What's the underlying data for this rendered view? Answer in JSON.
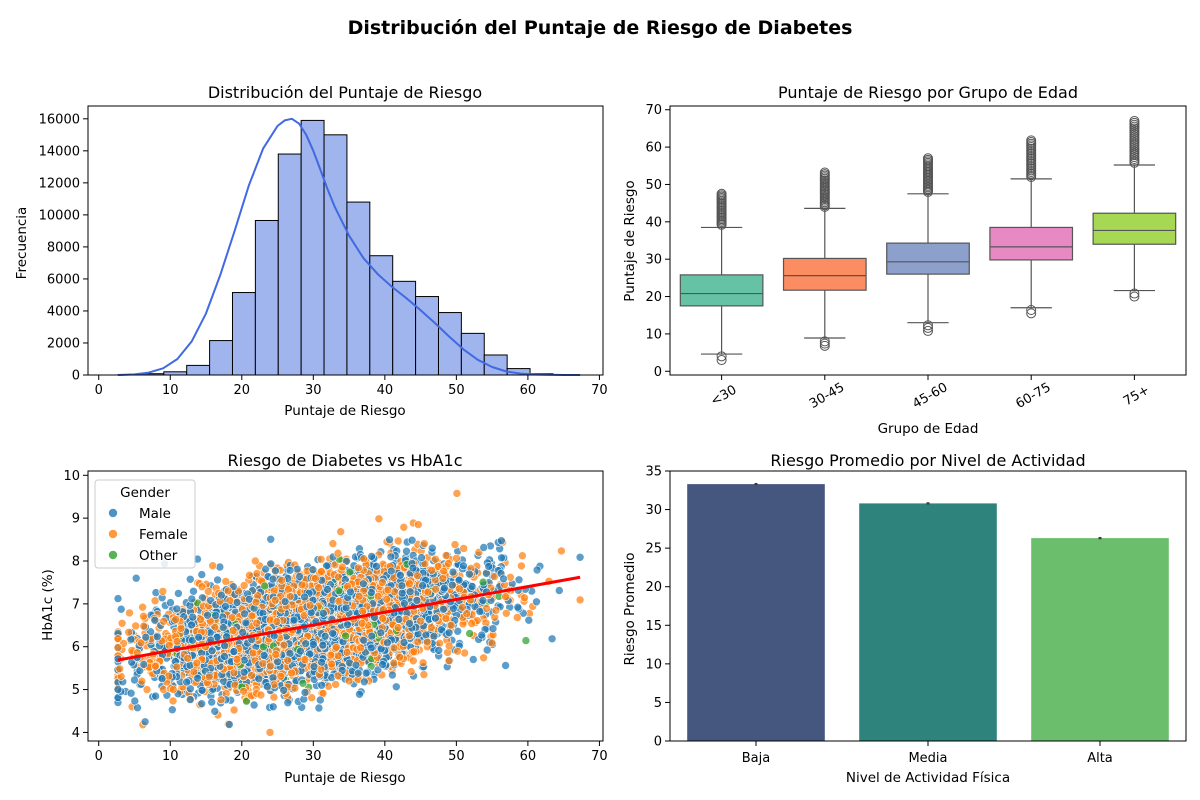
{
  "suptitle": "Distribución del Puntaje de Riesgo de Diabetes",
  "chart_data": [
    {
      "type": "bar",
      "subtype": "histogram_with_kde",
      "title": "Distribución del Puntaje de Riesgo",
      "xlabel": "Puntaje de Riesgo",
      "ylabel": "Frecuencia",
      "xlim": [
        -1.5,
        70.5
      ],
      "ylim": [
        0,
        16800
      ],
      "xticks": [
        0,
        10,
        20,
        30,
        40,
        50,
        60,
        70
      ],
      "yticks": [
        0,
        2000,
        4000,
        6000,
        8000,
        10000,
        12000,
        14000,
        16000
      ],
      "bin_width": 3.2,
      "bin_start": 2.7,
      "counts": [
        20,
        80,
        200,
        600,
        2150,
        5150,
        9650,
        13800,
        15900,
        15000,
        10800,
        7450,
        5850,
        4900,
        3900,
        2600,
        1250,
        400,
        80,
        20
      ],
      "kde": {
        "x": [
          2.7,
          5,
          7,
          9,
          11,
          13,
          15,
          17,
          19,
          21,
          23,
          25,
          26,
          27,
          28,
          29,
          30,
          31,
          32,
          33,
          35,
          37,
          39,
          41,
          43,
          45,
          47,
          49,
          51,
          53,
          55,
          57,
          59,
          61,
          63,
          65,
          67.3
        ],
        "y": [
          0,
          40,
          150,
          420,
          1000,
          2100,
          3850,
          6250,
          9000,
          11850,
          14150,
          15550,
          15900,
          16000,
          15700,
          15000,
          14000,
          12800,
          11600,
          10500,
          8700,
          7300,
          6300,
          5500,
          4800,
          4050,
          3250,
          2400,
          1600,
          950,
          500,
          220,
          90,
          30,
          10,
          3,
          0
        ]
      },
      "colors": {
        "bar": "#a0b4ee",
        "edge": "#000000",
        "kde": "#4169e1"
      }
    },
    {
      "type": "box",
      "title": "Puntaje de Riesgo por Grupo de Edad",
      "xlabel": "Grupo de Edad",
      "ylabel": "Puntaje de Riesgo",
      "ylim": [
        -1,
        71
      ],
      "yticks": [
        0,
        10,
        20,
        30,
        40,
        50,
        60,
        70
      ],
      "categories": [
        "<30",
        "30-45",
        "45-60",
        "60-75",
        "75+"
      ],
      "boxes": [
        {
          "q1": 17.5,
          "median": 20.8,
          "q3": 25.8,
          "whisker_low": 4.6,
          "whisker_high": 38.5,
          "outliers_low": [
            3,
            4
          ],
          "outliers_high_range": [
            39.2,
            47.5
          ],
          "color": "#66c2a5"
        },
        {
          "q1": 21.7,
          "median": 25.6,
          "q3": 30.2,
          "whisker_low": 8.9,
          "whisker_high": 43.6,
          "outliers_low": [
            6.8,
            7.4,
            8
          ],
          "outliers_high_range": [
            44,
            53.2
          ],
          "color": "#fc8d62"
        },
        {
          "q1": 26,
          "median": 29.3,
          "q3": 34.3,
          "whisker_low": 13,
          "whisker_high": 47.5,
          "outliers_low": [
            10.8,
            11.6,
            12.3
          ],
          "outliers_high_range": [
            48,
            57
          ],
          "color": "#8da0cb"
        },
        {
          "q1": 29.8,
          "median": 33.3,
          "q3": 38.5,
          "whisker_low": 17,
          "whisker_high": 51.5,
          "outliers_low": [
            15.5,
            16.4
          ],
          "outliers_high_range": [
            52,
            61.8
          ],
          "color": "#e78ac3"
        },
        {
          "q1": 34,
          "median": 37.7,
          "q3": 42.3,
          "whisker_low": 21.6,
          "whisker_high": 55.2,
          "outliers_low": [
            20,
            20.8
          ],
          "outliers_high_range": [
            55.8,
            67
          ],
          "color": "#a6d854"
        }
      ]
    },
    {
      "type": "scatter",
      "title": "Riesgo de Diabetes vs HbA1c",
      "xlabel": "Puntaje de Riesgo",
      "ylabel": "HbA1c (%)",
      "xlim": [
        -1.5,
        70.5
      ],
      "ylim": [
        3.8,
        10.1
      ],
      "xticks": [
        0,
        10,
        20,
        30,
        40,
        50,
        60,
        70
      ],
      "yticks": [
        4,
        5,
        6,
        7,
        8,
        9,
        10
      ],
      "legend": {
        "title": "Gender",
        "position": "upper-left"
      },
      "series": [
        {
          "name": "Male",
          "color": "#1f77b4"
        },
        {
          "name": "Female",
          "color": "#ff7f0e"
        },
        {
          "name": "Other",
          "color": "#2ca02c"
        }
      ],
      "regression": {
        "x": [
          2.7,
          67.3
        ],
        "y": [
          5.69,
          7.62
        ],
        "color": "#ff0000"
      },
      "cloud": {
        "x_mean": 30,
        "x_sd": 10.5,
        "x_min": 2.7,
        "x_max": 67.3,
        "y_at_x0": 5.6,
        "slope": 0.03,
        "y_sd": 1.05,
        "y_min": 4,
        "y_max": 9.8,
        "n_points": 7000
      }
    },
    {
      "type": "bar",
      "title": "Riesgo Promedio por Nivel de Actividad",
      "xlabel": "Nivel de Actividad Física",
      "ylabel": "Riesgo Promedio",
      "ylim": [
        0,
        35
      ],
      "yticks": [
        0,
        5,
        10,
        15,
        20,
        25,
        30,
        35
      ],
      "categories": [
        "Baja",
        "Media",
        "Alta"
      ],
      "values": [
        33.3,
        30.8,
        26.3
      ],
      "error": [
        0.15,
        0.15,
        0.15
      ],
      "colors": [
        "#46577f",
        "#2e837c",
        "#6abe6c"
      ]
    }
  ]
}
